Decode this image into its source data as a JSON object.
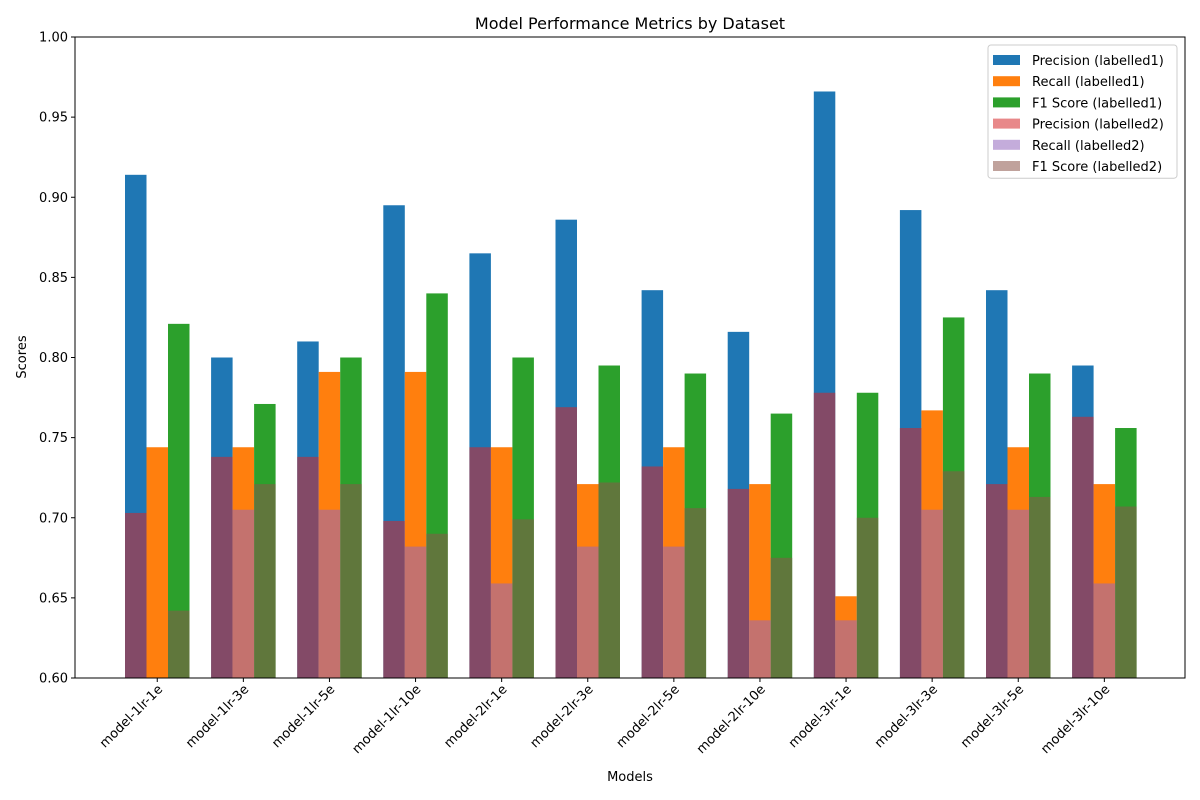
{
  "chart_data": {
    "type": "bar",
    "title": "Model Performance Metrics by Dataset",
    "xlabel": "Models",
    "ylabel": "Scores",
    "ylim": [
      0.6,
      1.0
    ],
    "yticks": [
      "0.60",
      "0.65",
      "0.70",
      "0.75",
      "0.80",
      "0.85",
      "0.90",
      "0.95",
      "1.00"
    ],
    "grid": false,
    "legend_position": "top-right",
    "categories": [
      "model-1lr-1e",
      "model-1lr-3e",
      "model-1lr-5e",
      "model-1lr-10e",
      "model-2lr-1e",
      "model-2lr-3e",
      "model-2lr-5e",
      "model-2lr-10e",
      "model-3lr-1e",
      "model-3lr-3e",
      "model-3lr-5e",
      "model-3lr-10e"
    ],
    "series": [
      {
        "name": "Precision (labelled1)",
        "metric_index": 0,
        "color": "#1f77b4",
        "opacity": 1.0,
        "values": [
          0.914,
          0.8,
          0.81,
          0.895,
          0.865,
          0.886,
          0.842,
          0.816,
          0.966,
          0.892,
          0.842,
          0.795
        ]
      },
      {
        "name": "Recall (labelled1)",
        "metric_index": 1,
        "color": "#ff7f0e",
        "opacity": 1.0,
        "values": [
          0.744,
          0.744,
          0.791,
          0.791,
          0.744,
          0.721,
          0.744,
          0.721,
          0.651,
          0.767,
          0.744,
          0.721
        ]
      },
      {
        "name": "F1 Score (labelled1)",
        "metric_index": 2,
        "color": "#2ca02c",
        "opacity": 1.0,
        "values": [
          0.821,
          0.771,
          0.8,
          0.84,
          0.8,
          0.795,
          0.79,
          0.765,
          0.778,
          0.825,
          0.79,
          0.756
        ]
      },
      {
        "name": "Precision (labelled2)",
        "metric_index": 0,
        "color": "#d62728",
        "opacity": 0.55,
        "values": [
          0.703,
          0.738,
          0.738,
          0.698,
          0.744,
          0.769,
          0.732,
          0.718,
          0.778,
          0.756,
          0.721,
          0.763
        ]
      },
      {
        "name": "Recall (labelled2)",
        "metric_index": 1,
        "color": "#9467bd",
        "opacity": 0.55,
        "values": [
          0.598,
          0.705,
          0.705,
          0.682,
          0.659,
          0.682,
          0.682,
          0.636,
          0.636,
          0.705,
          0.705,
          0.659
        ]
      },
      {
        "name": "F1 Score (labelled2)",
        "metric_index": 2,
        "color": "#8c564b",
        "opacity": 0.55,
        "values": [
          0.642,
          0.721,
          0.721,
          0.69,
          0.699,
          0.722,
          0.706,
          0.675,
          0.7,
          0.729,
          0.713,
          0.707
        ]
      }
    ]
  }
}
